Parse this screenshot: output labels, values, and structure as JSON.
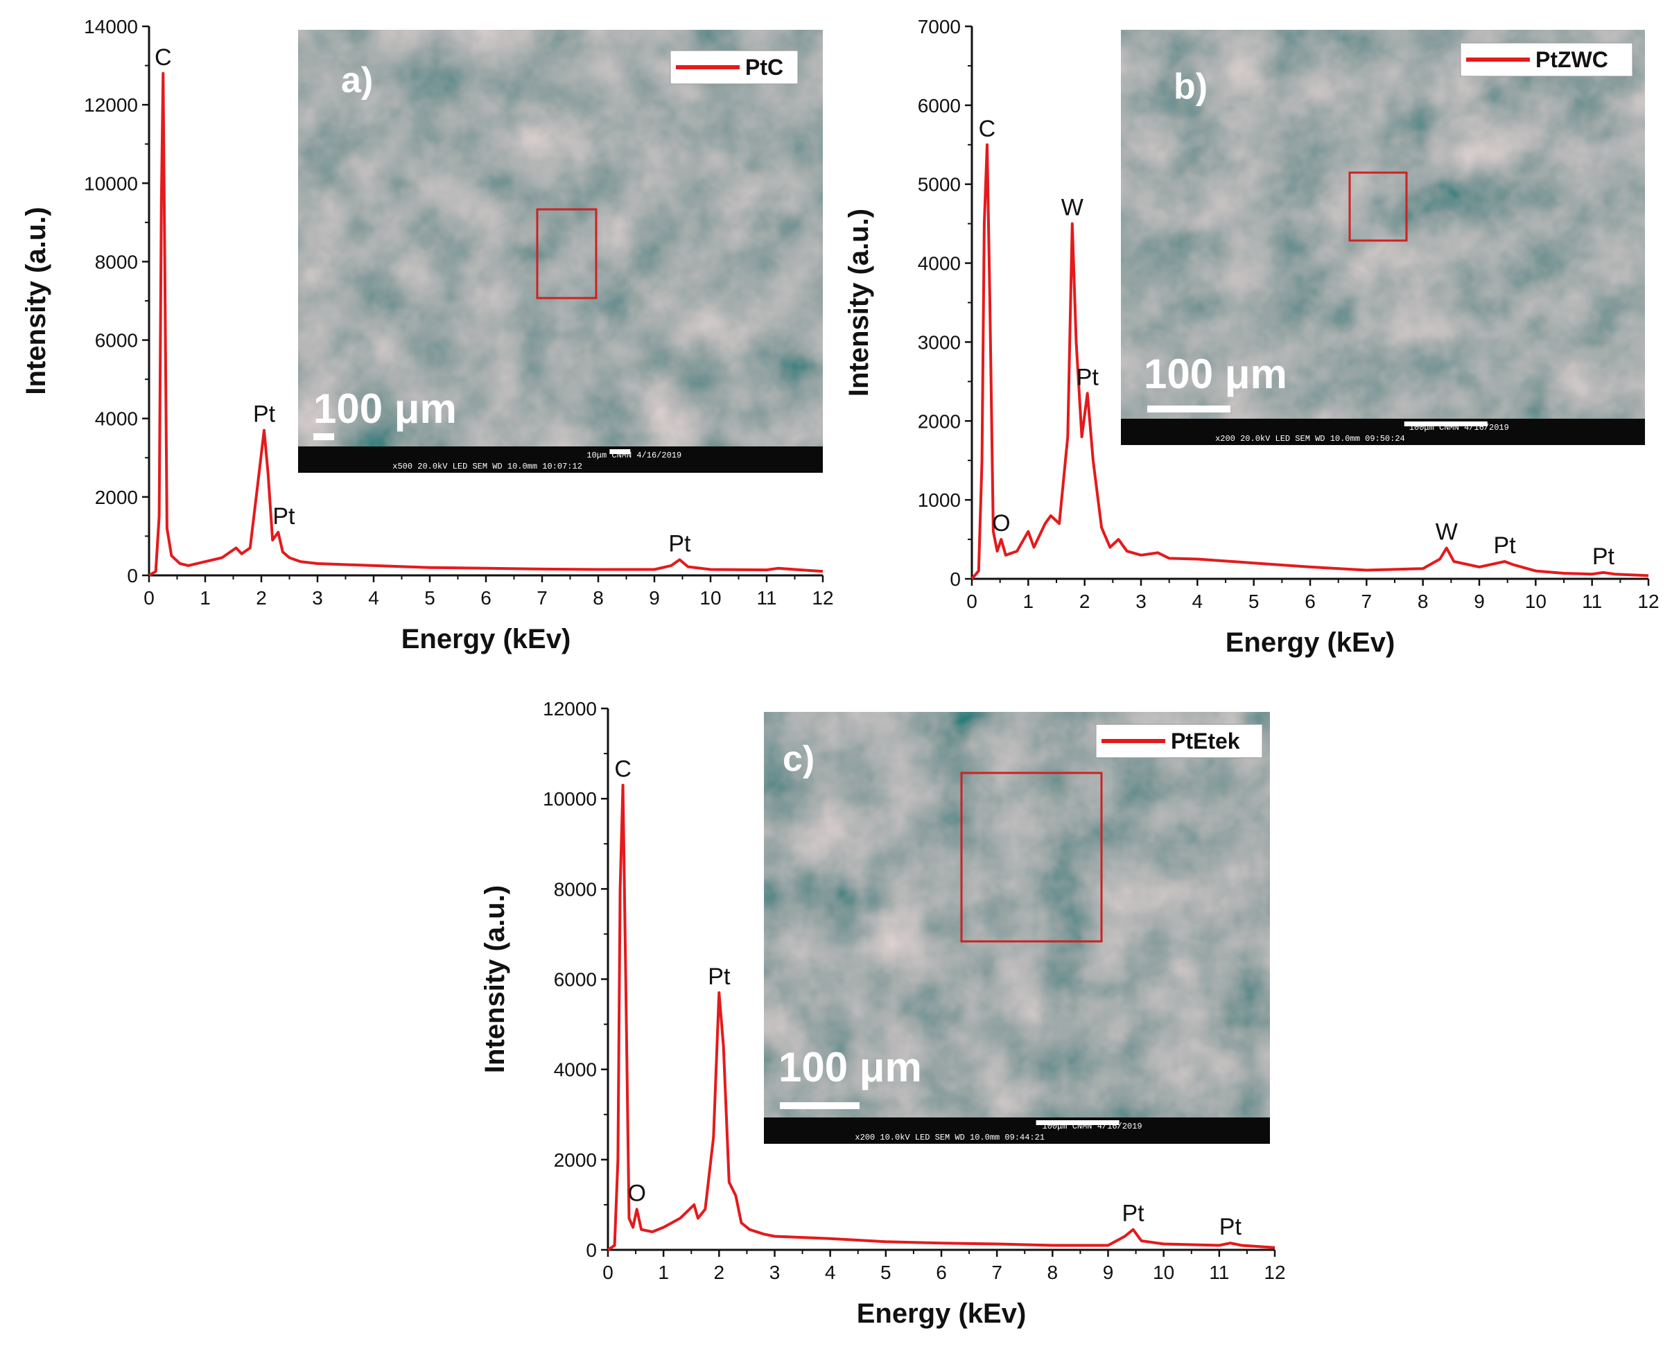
{
  "chart_data": [
    {
      "type": "line",
      "panel": "a)",
      "legend": "PtC",
      "line_color": "#e41a1c",
      "xlabel": "Energy (kEv)",
      "ylabel": "Intensity (a.u.)",
      "xlim": [
        0,
        12
      ],
      "ylim": [
        0,
        14000
      ],
      "xticks": [
        "0",
        "1",
        "2",
        "3",
        "4",
        "5",
        "6",
        "7",
        "8",
        "9",
        "10",
        "11",
        "12"
      ],
      "yticks": [
        "0",
        "2000",
        "4000",
        "6000",
        "8000",
        "10000",
        "12000",
        "14000"
      ],
      "x": [
        0,
        0.12,
        0.18,
        0.22,
        0.25,
        0.28,
        0.32,
        0.4,
        0.55,
        0.7,
        1.0,
        1.3,
        1.55,
        1.65,
        1.8,
        1.95,
        2.05,
        2.12,
        2.2,
        2.3,
        2.38,
        2.5,
        2.7,
        3,
        4,
        5,
        6,
        7,
        8,
        9,
        9.3,
        9.45,
        9.6,
        10,
        11,
        11.2,
        12
      ],
      "values": [
        0,
        100,
        1500,
        9500,
        12800,
        8000,
        1200,
        500,
        300,
        250,
        350,
        450,
        700,
        550,
        700,
        2500,
        3700,
        2600,
        900,
        1100,
        600,
        450,
        350,
        300,
        250,
        200,
        180,
        160,
        150,
        150,
        250,
        400,
        220,
        150,
        140,
        180,
        100
      ],
      "peak_labels": [
        {
          "label": "C",
          "x": 0.25,
          "y": 12800
        },
        {
          "label": "Pt",
          "x": 2.05,
          "y": 3700
        },
        {
          "label": "Pt",
          "x": 2.4,
          "y": 1100
        },
        {
          "label": "Pt",
          "x": 9.45,
          "y": 400
        }
      ],
      "inset": {
        "label": "a)",
        "scale_text": "100 μm",
        "info": [
          "10μm CNMN   4/16/2019",
          "x500   20.0kV LED   SEM   WD 10.0mm 10:07:12"
        ]
      }
    },
    {
      "type": "line",
      "panel": "b)",
      "legend": "PtZWC",
      "line_color": "#e41a1c",
      "xlabel": "Energy (kEv)",
      "ylabel": "Intensity (a.u.)",
      "xlim": [
        0,
        12
      ],
      "ylim": [
        0,
        7000
      ],
      "xticks": [
        "0",
        "1",
        "2",
        "3",
        "4",
        "5",
        "6",
        "7",
        "8",
        "9",
        "10",
        "11",
        "12"
      ],
      "yticks": [
        "0",
        "1000",
        "2000",
        "3000",
        "4000",
        "5000",
        "6000",
        "7000"
      ],
      "x": [
        0,
        0.12,
        0.18,
        0.22,
        0.27,
        0.32,
        0.38,
        0.45,
        0.52,
        0.6,
        0.8,
        1.0,
        1.1,
        1.3,
        1.4,
        1.55,
        1.7,
        1.78,
        1.85,
        1.95,
        2.05,
        2.15,
        2.3,
        2.45,
        2.6,
        2.75,
        3,
        3.3,
        3.5,
        4,
        5,
        6,
        7,
        8,
        8.3,
        8.42,
        8.55,
        9,
        9.45,
        9.6,
        9.75,
        10,
        10.5,
        11,
        11.2,
        11.4,
        12
      ],
      "values": [
        0,
        100,
        1500,
        4500,
        5500,
        3500,
        600,
        350,
        500,
        300,
        350,
        600,
        400,
        700,
        800,
        700,
        1800,
        4500,
        3000,
        1800,
        2350,
        1500,
        650,
        400,
        500,
        350,
        300,
        330,
        260,
        250,
        200,
        150,
        110,
        130,
        250,
        390,
        220,
        150,
        220,
        180,
        150,
        100,
        70,
        60,
        80,
        60,
        40
      ],
      "peak_labels": [
        {
          "label": "C",
          "x": 0.27,
          "y": 5500
        },
        {
          "label": "O",
          "x": 0.52,
          "y": 500
        },
        {
          "label": "W",
          "x": 1.78,
          "y": 4500
        },
        {
          "label": "Pt",
          "x": 2.05,
          "y": 2350
        },
        {
          "label": "W",
          "x": 8.42,
          "y": 390
        },
        {
          "label": "Pt",
          "x": 9.45,
          "y": 220
        },
        {
          "label": "Pt",
          "x": 11.2,
          "y": 80
        }
      ],
      "inset": {
        "label": "b)",
        "scale_text": "100 μm",
        "info": [
          "100μm CNMN   4/16/2019",
          "x200   20.0kV LED   SEM   WD 10.0mm 09:50:24"
        ]
      }
    },
    {
      "type": "line",
      "panel": "c)",
      "legend": "PtEtek",
      "line_color": "#e41a1c",
      "xlabel": "Energy (kEv)",
      "ylabel": "Intensity (a.u.)",
      "xlim": [
        0,
        12
      ],
      "ylim": [
        0,
        12000
      ],
      "xticks": [
        "0",
        "1",
        "2",
        "3",
        "4",
        "5",
        "6",
        "7",
        "8",
        "9",
        "10",
        "11",
        "12"
      ],
      "yticks": [
        "0",
        "2000",
        "4000",
        "6000",
        "8000",
        "10000",
        "12000"
      ],
      "x": [
        0,
        0.12,
        0.18,
        0.22,
        0.27,
        0.32,
        0.38,
        0.45,
        0.52,
        0.6,
        0.8,
        1.0,
        1.3,
        1.55,
        1.62,
        1.75,
        1.9,
        2.0,
        2.08,
        2.18,
        2.3,
        2.4,
        2.55,
        2.8,
        3,
        4,
        5,
        6,
        7,
        8,
        9,
        9.3,
        9.45,
        9.6,
        10,
        11,
        11.2,
        11.4,
        12
      ],
      "values": [
        0,
        100,
        2000,
        8000,
        10300,
        6000,
        700,
        500,
        900,
        450,
        400,
        500,
        700,
        1000,
        700,
        900,
        2500,
        5700,
        4500,
        1500,
        1200,
        600,
        450,
        350,
        300,
        250,
        180,
        150,
        130,
        100,
        100,
        300,
        450,
        200,
        130,
        100,
        150,
        100,
        50
      ],
      "peak_labels": [
        {
          "label": "C",
          "x": 0.27,
          "y": 10300
        },
        {
          "label": "O",
          "x": 0.52,
          "y": 900
        },
        {
          "label": "Pt",
          "x": 2.0,
          "y": 5700
        },
        {
          "label": "Pt",
          "x": 9.45,
          "y": 450
        },
        {
          "label": "Pt",
          "x": 11.2,
          "y": 150
        }
      ],
      "inset": {
        "label": "c)",
        "scale_text": "100 μm",
        "info": [
          "100μm CNMN   4/16/2019",
          "x200   10.0kV LED   SEM   WD 10.0mm 09:44:21"
        ]
      }
    }
  ]
}
